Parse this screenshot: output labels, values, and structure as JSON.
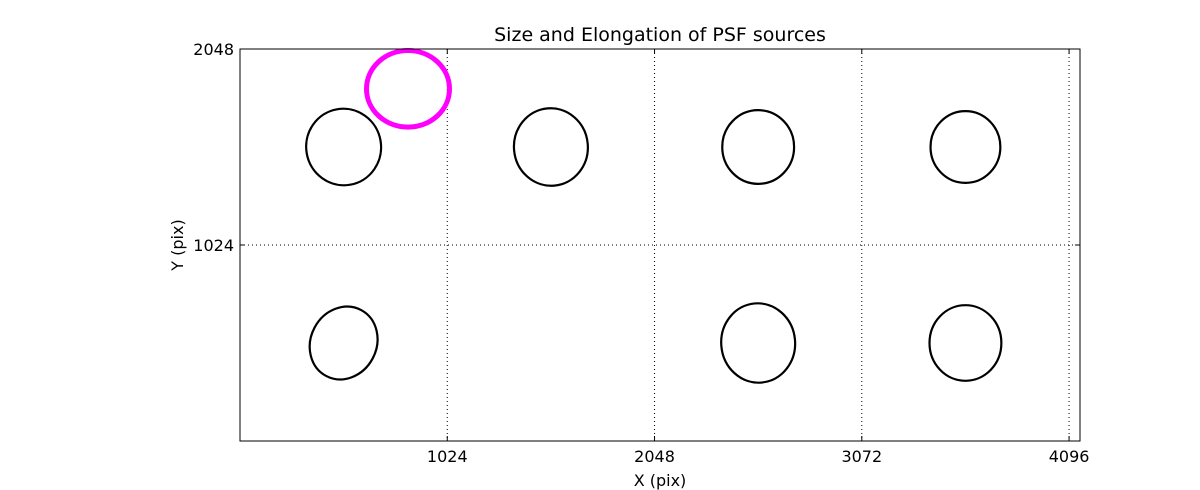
{
  "chart_data": {
    "type": "scatter",
    "title": "Size and Elongation of PSF sources",
    "xlabel": "X (pix)",
    "ylabel": "Y (pix)",
    "xlim": [
      0,
      4150
    ],
    "ylim": [
      0,
      2048
    ],
    "xticks": [
      1024,
      2048,
      3072,
      4096
    ],
    "xtick_labels": [
      "1024",
      "2048",
      "3072",
      "4096"
    ],
    "yticks": [
      1024,
      2048
    ],
    "ytick_labels": [
      "1024",
      "2048"
    ],
    "grid": true,
    "grid_style": "dotted",
    "colors": {
      "default": "#000000",
      "highlight": "#ff00ff"
    },
    "sources": [
      {
        "x": 512,
        "y": 1536,
        "width": 370,
        "height": 400,
        "angle": -10,
        "color": "#000000"
      },
      {
        "x": 830,
        "y": 1840,
        "width": 410,
        "height": 400,
        "angle": 0,
        "color": "#ff00ff"
      },
      {
        "x": 1536,
        "y": 1536,
        "width": 365,
        "height": 405,
        "angle": -5,
        "color": "#000000"
      },
      {
        "x": 2560,
        "y": 1536,
        "width": 355,
        "height": 385,
        "angle": 0,
        "color": "#000000"
      },
      {
        "x": 3584,
        "y": 1536,
        "width": 345,
        "height": 375,
        "angle": 0,
        "color": "#000000"
      },
      {
        "x": 512,
        "y": 512,
        "width": 325,
        "height": 390,
        "angle": 28,
        "color": "#000000"
      },
      {
        "x": 2560,
        "y": 512,
        "width": 365,
        "height": 415,
        "angle": -5,
        "color": "#000000"
      },
      {
        "x": 3584,
        "y": 512,
        "width": 355,
        "height": 395,
        "angle": 0,
        "color": "#000000"
      }
    ]
  }
}
